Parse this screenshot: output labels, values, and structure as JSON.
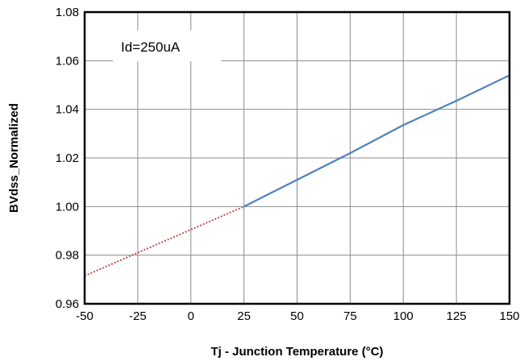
{
  "chart_data": {
    "type": "line",
    "xlabel": "Tj - Junction Temperature (°C)",
    "ylabel": "BVdss_Normalized",
    "xlim": [
      -50,
      150
    ],
    "ylim": [
      0.96,
      1.08
    ],
    "xticks": [
      -50,
      -25,
      0,
      25,
      50,
      75,
      100,
      125,
      150
    ],
    "yticks": [
      0.96,
      0.98,
      1.0,
      1.02,
      1.04,
      1.06,
      1.08
    ],
    "ytick_labels": [
      "0.96",
      "0.98",
      "1.00",
      "1.02",
      "1.04",
      "1.06",
      "1.08"
    ],
    "grid": true,
    "annotation": "Id=250uA",
    "series": [
      {
        "style": "dotted",
        "color": "#c0504d",
        "x": [
          -50,
          25
        ],
        "y": [
          0.9715,
          1.0
        ]
      },
      {
        "style": "solid",
        "color": "#4f81bd",
        "x": [
          25,
          50,
          75,
          100,
          125,
          150
        ],
        "y": [
          1.0,
          1.011,
          1.022,
          1.0335,
          1.0435,
          1.054
        ]
      }
    ]
  }
}
